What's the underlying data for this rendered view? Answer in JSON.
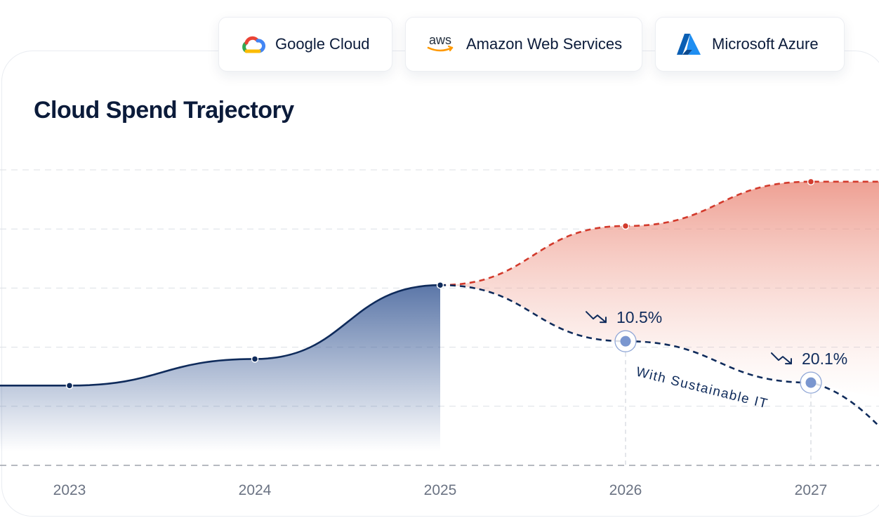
{
  "providers": [
    {
      "name": "Google Cloud",
      "icon": "google-cloud-icon"
    },
    {
      "name": "Amazon Web Services",
      "icon": "aws-icon",
      "icon_text": "aws"
    },
    {
      "name": "Microsoft Azure",
      "icon": "azure-icon"
    }
  ],
  "chart_data": {
    "type": "area",
    "title": "Cloud Spend Trajectory",
    "x": [
      "2023",
      "2024",
      "2025",
      "2026",
      "2027"
    ],
    "ylim": [
      0,
      100
    ],
    "grid": true,
    "series": [
      {
        "values": [
          27,
          36,
          61,
          null,
          null
        ],
        "style": "solid-area",
        "color": "#0f2b5b"
      },
      {
        "values": [
          null,
          null,
          61,
          81,
          96
        ],
        "style": "dashed-area",
        "color": "#d23a2c"
      },
      {
        "values": [
          null,
          null,
          61,
          42,
          28
        ],
        "style": "dashed",
        "color": "#0f2b5b",
        "name": "With Sustainable IT"
      }
    ],
    "annotations": [
      {
        "x": "2026",
        "text": "10.5%",
        "icon": "trend-down-icon"
      },
      {
        "x": "2027",
        "text": "20.1%",
        "icon": "trend-down-icon"
      }
    ]
  },
  "colors": {
    "navy": "#0f2b5b",
    "red": "#d23a2c",
    "marker": "#7a96cf"
  }
}
